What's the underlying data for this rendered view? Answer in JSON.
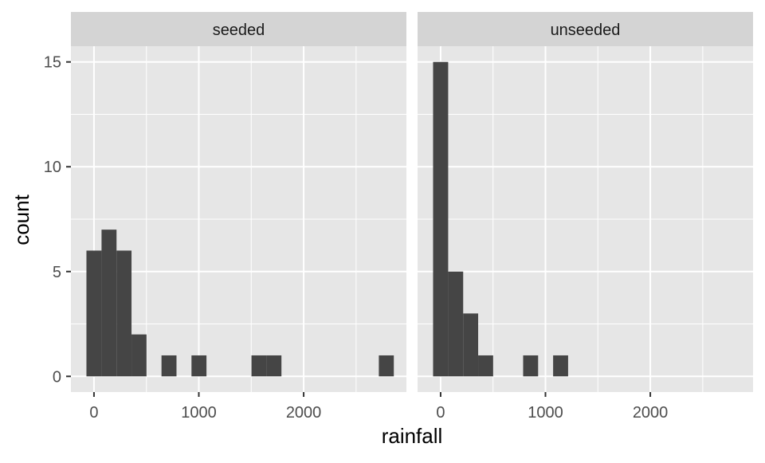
{
  "chart_data": {
    "type": "bar",
    "subtype": "faceted-histogram",
    "xlabel": "rainfall",
    "ylabel": "count",
    "xlim": [
      -220,
      2980
    ],
    "ylim": [
      -0.75,
      15.75
    ],
    "x_ticks": [
      0,
      1000,
      2000
    ],
    "x_tick_labels": [
      "0",
      "1000",
      "2000"
    ],
    "x_minor_breaks": [
      500,
      1500,
      2500
    ],
    "y_ticks": [
      0,
      5,
      10,
      15
    ],
    "y_tick_labels": [
      "0",
      "5",
      "10",
      "15"
    ],
    "y_minor_breaks": [
      2.5,
      7.5,
      12.5
    ],
    "bin_width": 143,
    "grid": true,
    "colors": {
      "bar": "#454545",
      "panel_background": "#e6e6e6",
      "grid": "#ffffff",
      "strip_background": "#d4d4d4"
    },
    "facets": [
      {
        "strip": "seeded",
        "bins": [
          {
            "x0": -72,
            "x1": 72,
            "count": 6
          },
          {
            "x0": 72,
            "x1": 215,
            "count": 7
          },
          {
            "x0": 215,
            "x1": 358,
            "count": 6
          },
          {
            "x0": 358,
            "x1": 501,
            "count": 2
          },
          {
            "x0": 644,
            "x1": 787,
            "count": 1
          },
          {
            "x0": 930,
            "x1": 1073,
            "count": 1
          },
          {
            "x0": 1502,
            "x1": 1645,
            "count": 1
          },
          {
            "x0": 1645,
            "x1": 1788,
            "count": 1
          },
          {
            "x0": 2717,
            "x1": 2860,
            "count": 1
          }
        ]
      },
      {
        "strip": "unseeded",
        "bins": [
          {
            "x0": -72,
            "x1": 72,
            "count": 15
          },
          {
            "x0": 72,
            "x1": 215,
            "count": 5
          },
          {
            "x0": 215,
            "x1": 358,
            "count": 3
          },
          {
            "x0": 358,
            "x1": 501,
            "count": 1
          },
          {
            "x0": 787,
            "x1": 930,
            "count": 1
          },
          {
            "x0": 1073,
            "x1": 1216,
            "count": 1
          }
        ]
      }
    ]
  }
}
